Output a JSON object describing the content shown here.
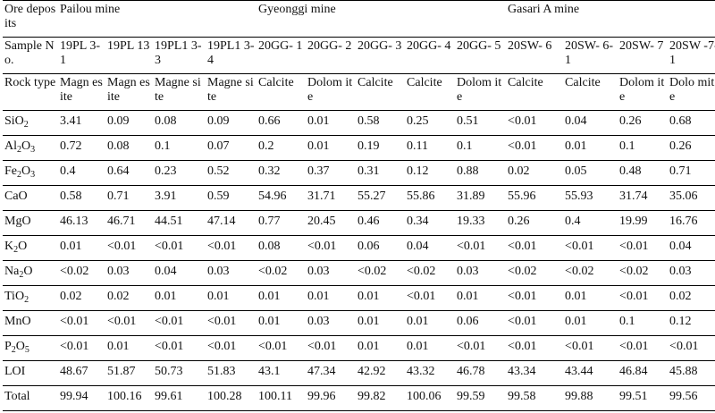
{
  "header": {
    "corner_label": "Ore deposits",
    "mines": [
      "Pailou mine",
      "Gyeonggi mine",
      "Gasari A mine"
    ]
  },
  "sample_label": "Sample No.",
  "rock_label": "Rock type",
  "samples": [
    "19PL 3-1",
    "19PL 13",
    "19PL1 3-3",
    "19PL1 3-4",
    "20GG- 1",
    "20GG- 2",
    "20GG- 3",
    "20GG- 4",
    "20GG- 5",
    "20SW- 6",
    "20SW- 6-1",
    "20SW- 7",
    "20SW -7-1"
  ],
  "rock_types": [
    "Magn esite",
    "Magn esite",
    "Magne site",
    "Magne site",
    "Calcite",
    "Dolom ite",
    "Calcite",
    "Calcite",
    "Dolom ite",
    "Calcite",
    "Calcite",
    "Dolom ite",
    "Dolo mite"
  ],
  "rows": [
    {
      "label": "SiO",
      "sub": "2",
      "values": [
        "3.41",
        "0.09",
        "0.08",
        "0.09",
        "0.66",
        "0.01",
        "0.58",
        "0.25",
        "0.51",
        "<0.01",
        "0.04",
        "0.26",
        "0.68"
      ]
    },
    {
      "label": "Al",
      "sub": "2",
      "suffix": "O",
      "sub2": "3",
      "values": [
        "0.72",
        "0.08",
        "0.1",
        "0.07",
        "0.2",
        "0.01",
        "0.19",
        "0.11",
        "0.1",
        "<0.01",
        "0.01",
        "0.1",
        "0.26"
      ]
    },
    {
      "label": "Fe",
      "sub": "2",
      "suffix": "O",
      "sub2": "3",
      "values": [
        "0.4",
        "0.64",
        "0.23",
        "0.52",
        "0.32",
        "0.37",
        "0.31",
        "0.12",
        "0.88",
        "0.02",
        "0.05",
        "0.48",
        "0.71"
      ]
    },
    {
      "label": "CaO",
      "values": [
        "0.58",
        "0.71",
        "3.91",
        "0.59",
        "54.96",
        "31.71",
        "55.27",
        "55.86",
        "31.89",
        "55.96",
        "55.93",
        "31.74",
        "35.06"
      ]
    },
    {
      "label": "MgO",
      "values": [
        "46.13",
        "46.71",
        "44.51",
        "47.14",
        "0.77",
        "20.45",
        "0.46",
        "0.34",
        "19.33",
        "0.26",
        "0.4",
        "19.99",
        "16.76"
      ]
    },
    {
      "label": "K",
      "sub": "2",
      "suffix": "O",
      "values": [
        "0.01",
        "<0.01",
        "<0.01",
        "<0.01",
        "0.08",
        "<0.01",
        "0.06",
        "0.04",
        "<0.01",
        "<0.01",
        "<0.01",
        "<0.01",
        "0.04"
      ]
    },
    {
      "label": "Na",
      "sub": "2",
      "suffix": "O",
      "values": [
        "<0.02",
        "0.03",
        "0.04",
        "0.03",
        "<0.02",
        "0.03",
        "<0.02",
        "<0.02",
        "0.03",
        "<0.02",
        "<0.02",
        "<0.02",
        "0.03"
      ]
    },
    {
      "label": "TiO",
      "sub": "2",
      "values": [
        "0.02",
        "0.02",
        "0.01",
        "0.01",
        "0.01",
        "0.01",
        "0.01",
        "<0.01",
        "0.01",
        "<0.01",
        "0.01",
        "<0.01",
        "0.02"
      ]
    },
    {
      "label": "MnO",
      "values": [
        "<0.01",
        "<0.01",
        "<0.01",
        "<0.01",
        "0.01",
        "0.03",
        "0.01",
        "0.01",
        "0.06",
        "<0.01",
        "0.01",
        "0.1",
        "0.12"
      ]
    },
    {
      "label": "P",
      "sub": "2",
      "suffix": "O",
      "sub2": "5",
      "values": [
        "<0.01",
        "0.01",
        "<0.01",
        "<0.01",
        "<0.01",
        "<0.01",
        "0.01",
        "0.01",
        "<0.01",
        "<0.01",
        "<0.01",
        "<0.01",
        "<0.01"
      ]
    },
    {
      "label": "LOI",
      "values": [
        "48.67",
        "51.87",
        "50.73",
        "51.83",
        "43.1",
        "47.34",
        "42.92",
        "43.32",
        "46.78",
        "43.34",
        "43.44",
        "46.84",
        "45.88"
      ]
    },
    {
      "label": "Total",
      "values": [
        "99.94",
        "100.16",
        "99.61",
        "100.28",
        "100.11",
        "99.96",
        "99.82",
        "100.06",
        "99.59",
        "99.58",
        "99.88",
        "99.51",
        "99.56"
      ]
    }
  ]
}
